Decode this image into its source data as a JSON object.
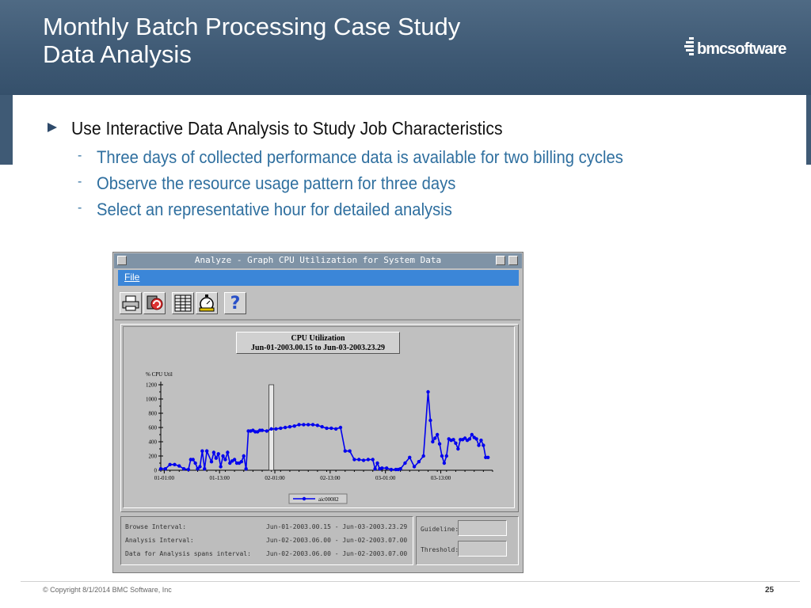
{
  "slide": {
    "title_line1": "Monthly Batch Processing Case Study",
    "title_line2": "Data Analysis",
    "logo_text": "bmcsoftware",
    "bullet": "Use Interactive Data Analysis to Study Job Characteristics",
    "sub_bullets": [
      "Three days of collected performance data is available for two billing cycles",
      "Observe the resource usage pattern for three days",
      "Select an representative hour for detailed analysis"
    ],
    "copyright": "© Copyright 8/1/2014 BMC Software, Inc",
    "page_number": "25"
  },
  "window": {
    "title": "Analyze - Graph CPU Utilization for System Data",
    "menu_file": "File",
    "toolbar": [
      "print-icon",
      "refresh-icon",
      "table-icon",
      "stopwatch-icon",
      "help-icon"
    ]
  },
  "info": {
    "browse_label": "Browse Interval:",
    "browse_value": "Jun-01-2003.00.15 - Jun-03-2003.23.29",
    "analysis_label": "Analysis Interval:",
    "analysis_value": "Jun-02-2003.06.00 - Jun-02-2003.07.00",
    "span_label": "Data for Analysis spans interval:",
    "span_value": "Jun-02-2003.06.00 - Jun-02-2003.07.00",
    "guideline_label": "Guideline:",
    "threshold_label": "Threshold:"
  },
  "chart_data": {
    "type": "line",
    "title": "CPU Utilization",
    "subtitle": "Jun-01-2003.00.15 to Jun-03-2003.23.29",
    "ylabel": "% CPU Util",
    "ylim": [
      0,
      1200
    ],
    "yticks": [
      0,
      200,
      400,
      600,
      800,
      1000,
      1200
    ],
    "xlim_hours": [
      0,
      72
    ],
    "xticks": [
      "01-01:00",
      "01-13:00",
      "02-01:00",
      "02-13:00",
      "03-01:00",
      "03-13:00"
    ],
    "series": [
      {
        "name": "aic00082",
        "color": "#0000ee",
        "x": [
          0,
          1,
          2,
          3,
          4,
          5,
          6,
          6.5,
          7,
          7.5,
          8,
          8.5,
          9,
          9.5,
          10,
          11,
          11.5,
          12,
          12.5,
          13,
          13.5,
          14,
          14.5,
          15,
          15.5,
          16,
          16.5,
          17,
          17.5,
          18,
          18.5,
          19,
          19.5,
          20,
          20.5,
          21,
          21.5,
          22,
          23,
          24,
          25,
          26,
          27,
          28,
          29,
          30,
          31,
          32,
          33,
          34,
          35,
          36,
          37,
          38,
          39,
          40,
          41,
          42,
          43,
          44,
          45,
          46,
          46.5,
          47,
          47.5,
          48,
          49,
          50,
          51,
          51.5,
          52,
          53,
          54,
          55,
          56,
          57,
          58,
          58.5,
          59,
          59.5,
          60,
          60.5,
          61,
          61.5,
          62,
          62.5,
          63,
          63.5,
          64,
          64.5,
          65,
          65.5,
          66,
          66.5,
          67,
          67.5,
          68,
          68.5,
          69,
          69.5,
          70,
          70.5,
          71
        ],
        "y": [
          20,
          20,
          80,
          80,
          60,
          20,
          10,
          150,
          150,
          100,
          20,
          50,
          270,
          20,
          270,
          120,
          250,
          170,
          230,
          50,
          200,
          150,
          250,
          100,
          130,
          150,
          100,
          100,
          120,
          200,
          20,
          550,
          550,
          560,
          540,
          540,
          560,
          560,
          550,
          580,
          580,
          590,
          600,
          610,
          620,
          640,
          640,
          640,
          640,
          630,
          610,
          590,
          590,
          580,
          600,
          270,
          270,
          150,
          150,
          140,
          150,
          150,
          20,
          100,
          20,
          30,
          30,
          10,
          10,
          10,
          20,
          100,
          180,
          50,
          120,
          200,
          1100,
          700,
          400,
          450,
          500,
          370,
          200,
          100,
          200,
          440,
          420,
          430,
          380,
          300,
          430,
          430,
          450,
          420,
          440,
          500,
          460,
          440,
          350,
          420,
          350,
          180,
          180
        ]
      }
    ],
    "vertical_marker_x": 24
  }
}
